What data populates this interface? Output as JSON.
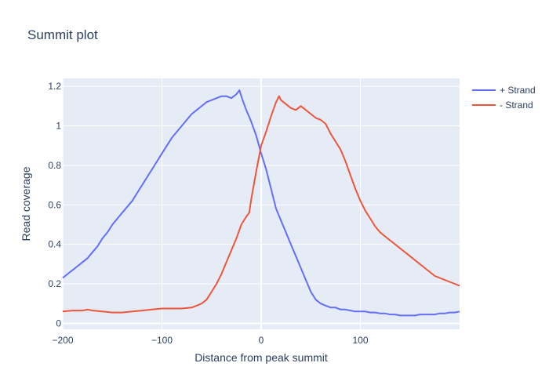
{
  "chart_data": {
    "type": "line",
    "title": "Summit plot",
    "xlabel": "Distance from peak summit",
    "ylabel": "Read coverage",
    "xlim": [
      -200,
      200
    ],
    "ylim": [
      -0.03,
      1.24
    ],
    "x_ticks": [
      -200,
      -100,
      0,
      100
    ],
    "x_tick_labels": [
      "−200",
      "−100",
      "0",
      "100"
    ],
    "y_ticks": [
      0,
      0.2,
      0.4,
      0.6,
      0.8,
      1,
      1.2
    ],
    "y_tick_labels": [
      "0",
      "0.2",
      "0.4",
      "0.6",
      "0.8",
      "1",
      "1.2"
    ],
    "grid": true,
    "legend_position": "top-right",
    "plot_background": "#e5ecf6",
    "series": [
      {
        "name": "+ Strand",
        "color": "#636efa",
        "x": [
          -200,
          -195,
          -190,
          -185,
          -180,
          -175,
          -170,
          -165,
          -160,
          -155,
          -150,
          -145,
          -140,
          -135,
          -130,
          -125,
          -120,
          -115,
          -110,
          -105,
          -100,
          -95,
          -90,
          -85,
          -80,
          -75,
          -70,
          -65,
          -60,
          -55,
          -50,
          -45,
          -40,
          -35,
          -30,
          -25,
          -22,
          -20,
          -18,
          -15,
          -10,
          -5,
          0,
          5,
          10,
          15,
          20,
          25,
          30,
          35,
          40,
          45,
          50,
          55,
          60,
          65,
          70,
          75,
          80,
          85,
          90,
          95,
          100,
          105,
          110,
          115,
          120,
          125,
          130,
          135,
          140,
          145,
          150,
          155,
          160,
          165,
          170,
          175,
          180,
          185,
          190,
          195,
          200
        ],
        "y": [
          0.23,
          0.25,
          0.27,
          0.29,
          0.31,
          0.33,
          0.36,
          0.39,
          0.43,
          0.46,
          0.5,
          0.53,
          0.56,
          0.59,
          0.62,
          0.66,
          0.7,
          0.74,
          0.78,
          0.82,
          0.86,
          0.9,
          0.94,
          0.97,
          1.0,
          1.03,
          1.06,
          1.08,
          1.1,
          1.12,
          1.13,
          1.14,
          1.15,
          1.15,
          1.14,
          1.16,
          1.18,
          1.15,
          1.12,
          1.08,
          1.02,
          0.95,
          0.86,
          0.78,
          0.68,
          0.58,
          0.52,
          0.46,
          0.4,
          0.34,
          0.28,
          0.22,
          0.16,
          0.12,
          0.1,
          0.09,
          0.08,
          0.08,
          0.07,
          0.07,
          0.065,
          0.06,
          0.06,
          0.06,
          0.055,
          0.055,
          0.05,
          0.05,
          0.045,
          0.045,
          0.04,
          0.04,
          0.04,
          0.04,
          0.045,
          0.045,
          0.045,
          0.045,
          0.05,
          0.05,
          0.055,
          0.055,
          0.06
        ]
      },
      {
        "name": "- Strand",
        "color": "#ef553b",
        "x": [
          -200,
          -190,
          -180,
          -175,
          -170,
          -160,
          -150,
          -140,
          -130,
          -120,
          -110,
          -100,
          -90,
          -80,
          -70,
          -65,
          -60,
          -55,
          -50,
          -45,
          -40,
          -35,
          -30,
          -25,
          -20,
          -15,
          -12,
          -10,
          -5,
          0,
          5,
          10,
          15,
          18,
          20,
          25,
          30,
          35,
          40,
          45,
          50,
          55,
          60,
          65,
          70,
          75,
          80,
          85,
          90,
          95,
          100,
          105,
          110,
          115,
          120,
          125,
          130,
          135,
          140,
          145,
          150,
          155,
          160,
          165,
          170,
          175,
          180,
          185,
          190,
          195,
          200
        ],
        "y": [
          0.06,
          0.065,
          0.065,
          0.07,
          0.065,
          0.06,
          0.055,
          0.055,
          0.06,
          0.065,
          0.07,
          0.075,
          0.075,
          0.075,
          0.08,
          0.09,
          0.1,
          0.12,
          0.16,
          0.2,
          0.25,
          0.31,
          0.37,
          0.43,
          0.5,
          0.54,
          0.56,
          0.63,
          0.77,
          0.9,
          0.97,
          1.05,
          1.12,
          1.15,
          1.13,
          1.11,
          1.09,
          1.08,
          1.1,
          1.08,
          1.06,
          1.04,
          1.03,
          1.01,
          0.96,
          0.92,
          0.88,
          0.82,
          0.75,
          0.68,
          0.62,
          0.57,
          0.53,
          0.49,
          0.46,
          0.44,
          0.42,
          0.4,
          0.38,
          0.36,
          0.34,
          0.32,
          0.3,
          0.28,
          0.26,
          0.24,
          0.23,
          0.22,
          0.21,
          0.2,
          0.19
        ]
      }
    ]
  }
}
